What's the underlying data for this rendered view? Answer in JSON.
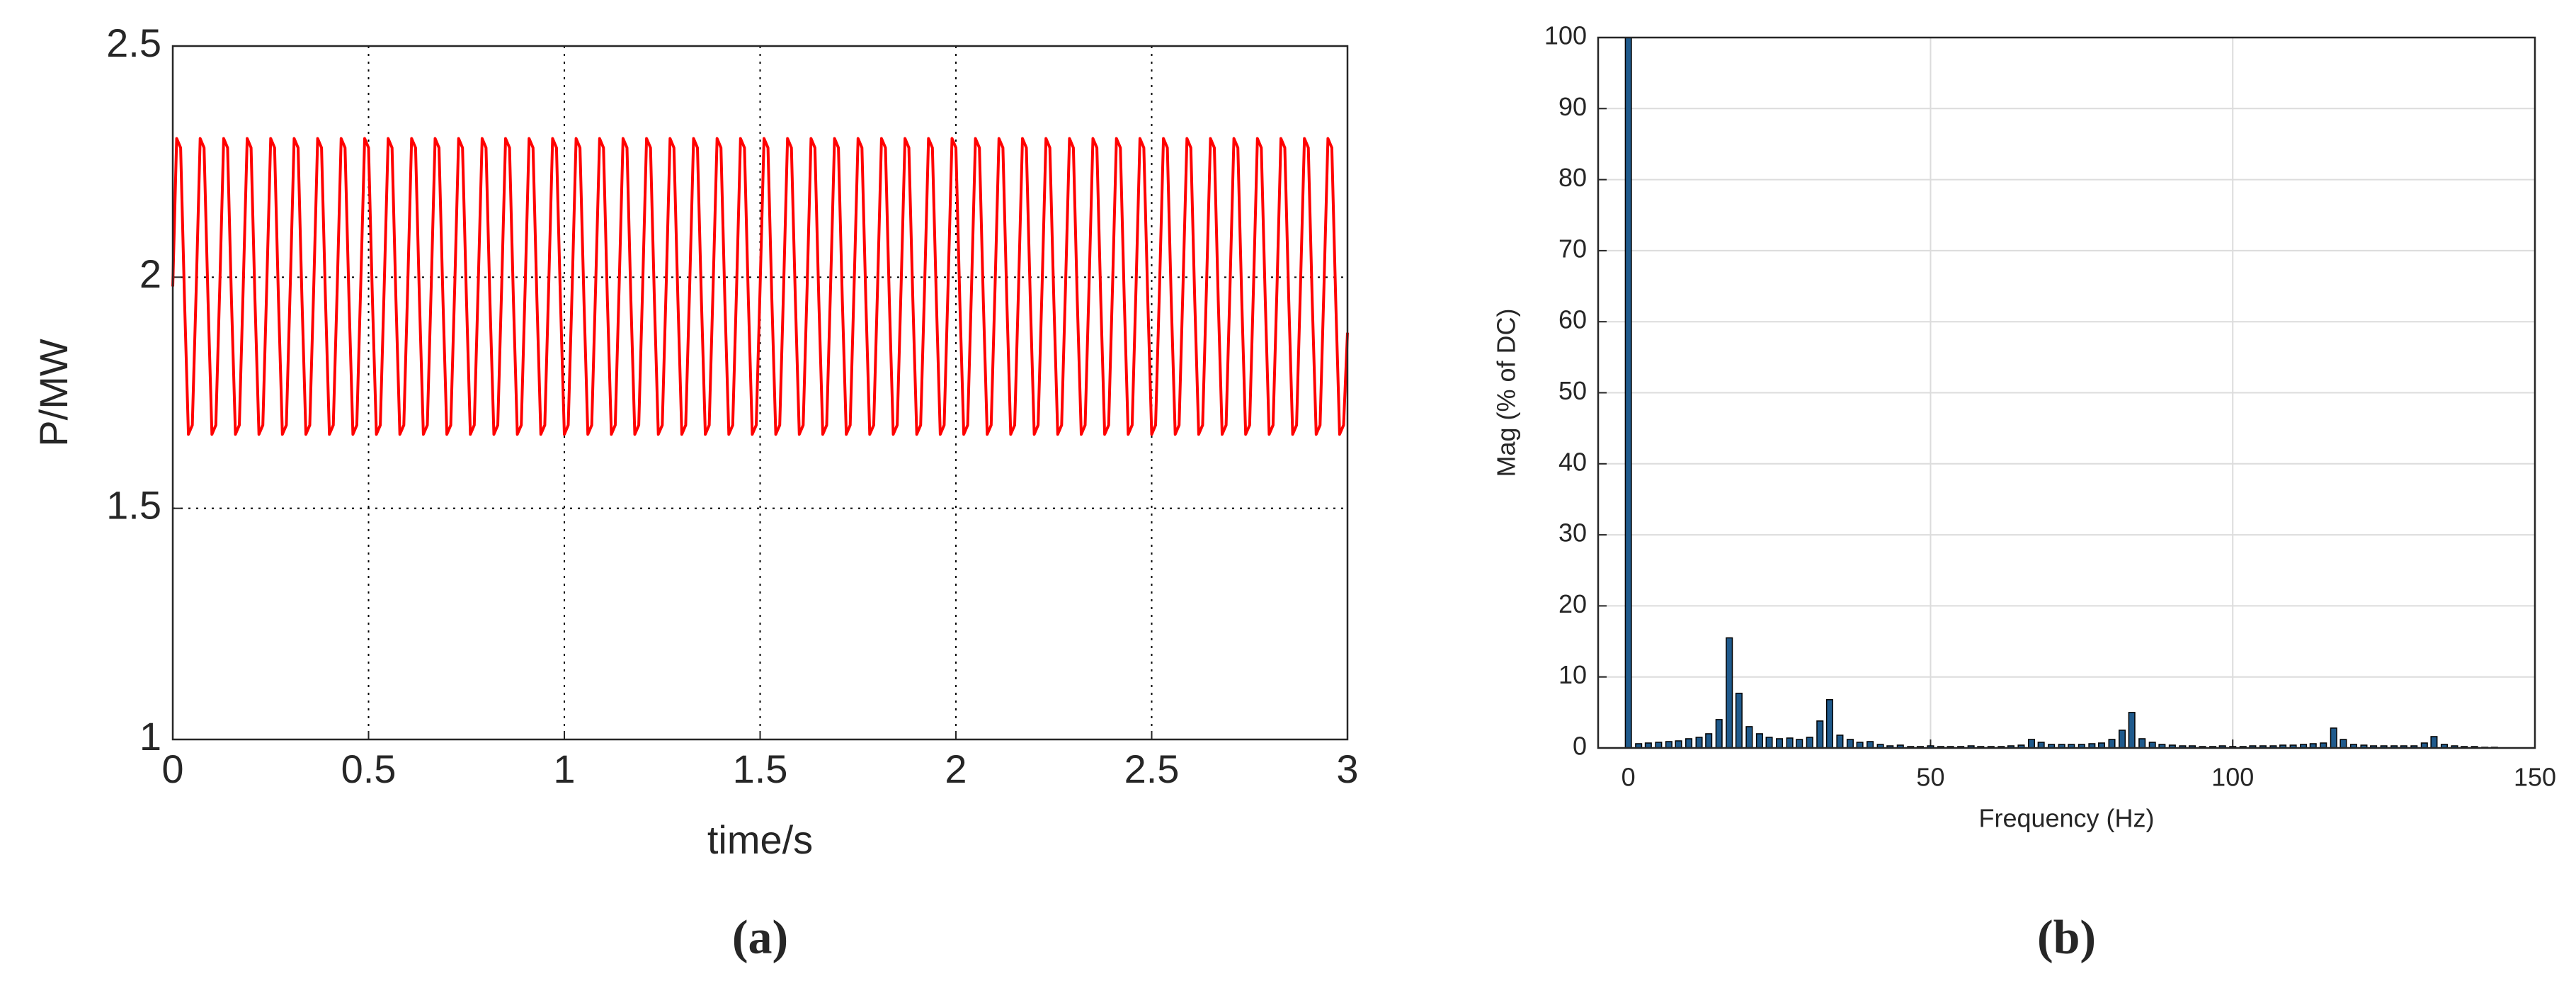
{
  "chart_data": [
    {
      "type": "line",
      "label": "(a)",
      "xlabel": "time/s",
      "ylabel": "P/MW",
      "color": "#ff0000",
      "xlim": [
        0,
        3
      ],
      "ylim": [
        1,
        2.5
      ],
      "xticks": [
        0,
        0.5,
        1,
        1.5,
        2,
        2.5,
        3
      ],
      "yticks": [
        1,
        1.5,
        2,
        2.5
      ],
      "grid": true,
      "x": [
        0,
        0.01,
        0.02,
        0.03,
        0.04,
        0.05,
        0.06,
        0.07,
        0.08,
        0.09,
        0.1,
        0.11,
        0.12,
        0.13,
        0.14,
        0.15,
        0.16,
        0.17,
        0.18,
        0.19,
        0.2,
        0.21,
        0.22,
        0.23,
        0.24,
        0.25,
        0.26,
        0.27,
        0.28,
        0.29,
        0.3,
        0.31,
        0.32,
        0.33,
        0.34,
        0.35,
        0.36,
        0.37,
        0.38,
        0.39,
        0.4,
        0.41,
        0.42,
        0.43,
        0.44,
        0.45,
        0.46,
        0.47,
        0.48,
        0.49,
        0.5,
        0.51,
        0.52,
        0.53,
        0.54,
        0.55,
        0.56,
        0.57,
        0.58,
        0.59,
        0.6,
        0.61,
        0.62,
        0.63,
        0.64,
        0.65,
        0.66,
        0.67,
        0.68,
        0.69,
        0.7,
        0.71,
        0.72,
        0.73,
        0.74,
        0.75,
        0.76,
        0.77,
        0.78,
        0.79,
        0.8,
        0.81,
        0.82,
        0.83,
        0.84,
        0.85,
        0.86,
        0.87,
        0.88,
        0.89,
        0.9,
        0.91,
        0.92,
        0.93,
        0.94,
        0.95,
        0.96,
        0.97,
        0.98,
        0.99,
        1,
        1.01,
        1.02,
        1.03,
        1.04,
        1.05,
        1.06,
        1.07,
        1.08,
        1.09,
        1.1,
        1.11,
        1.12,
        1.13,
        1.14,
        1.15,
        1.16,
        1.17,
        1.18,
        1.19,
        1.2,
        1.21,
        1.22,
        1.23,
        1.24,
        1.25,
        1.26,
        1.27,
        1.28,
        1.29,
        1.3,
        1.31,
        1.32,
        1.33,
        1.34,
        1.35,
        1.36,
        1.37,
        1.38,
        1.39,
        1.4,
        1.41,
        1.42,
        1.43,
        1.44,
        1.45,
        1.46,
        1.47,
        1.48,
        1.49,
        1.5,
        1.51,
        1.52,
        1.53,
        1.54,
        1.55,
        1.56,
        1.57,
        1.58,
        1.59,
        1.6,
        1.61,
        1.62,
        1.63,
        1.64,
        1.65,
        1.66,
        1.67,
        1.68,
        1.69,
        1.7,
        1.71,
        1.72,
        1.73,
        1.74,
        1.75,
        1.76,
        1.77,
        1.78,
        1.79,
        1.8,
        1.81,
        1.82,
        1.83,
        1.84,
        1.85,
        1.86,
        1.87,
        1.88,
        1.89,
        1.9,
        1.91,
        1.92,
        1.93,
        1.94,
        1.95,
        1.96,
        1.97,
        1.98,
        1.99,
        2,
        2.01,
        2.02,
        2.03,
        2.04,
        2.05,
        2.06,
        2.07,
        2.08,
        2.09,
        2.1,
        2.11,
        2.12,
        2.13,
        2.14,
        2.15,
        2.16,
        2.17,
        2.18,
        2.19,
        2.2,
        2.21,
        2.22,
        2.23,
        2.24,
        2.25,
        2.26,
        2.27,
        2.28,
        2.29,
        2.3,
        2.31,
        2.32,
        2.33,
        2.34,
        2.35,
        2.36,
        2.37,
        2.38,
        2.39,
        2.4,
        2.41,
        2.42,
        2.43,
        2.44,
        2.45,
        2.46,
        2.47,
        2.48,
        2.49,
        2.5,
        2.51,
        2.52,
        2.53,
        2.54,
        2.55,
        2.56,
        2.57,
        2.58,
        2.59,
        2.6,
        2.61,
        2.62,
        2.63,
        2.64,
        2.65,
        2.66,
        2.67,
        2.68,
        2.69,
        2.7,
        2.71,
        2.72,
        2.73,
        2.74,
        2.75,
        2.76,
        2.77,
        2.78,
        2.79,
        2.8,
        2.81,
        2.82,
        2.83,
        2.84,
        2.85,
        2.86,
        2.87,
        2.88,
        2.89,
        2.9,
        2.91,
        2.92,
        2.93,
        2.94,
        2.95,
        2.96,
        2.97,
        2.98,
        2.99,
        3
      ],
      "values": [
        1.98,
        2.3,
        2.28,
        1.95,
        1.66,
        1.68,
        1.98,
        2.3,
        2.28,
        1.95,
        1.66,
        1.68,
        1.98,
        2.3,
        2.28,
        1.95,
        1.66,
        1.68,
        1.98,
        2.3,
        2.28,
        1.95,
        1.66,
        1.68,
        1.98,
        2.3,
        2.28,
        1.95,
        1.66,
        1.68,
        1.98,
        2.3,
        2.28,
        1.95,
        1.66,
        1.68,
        1.98,
        2.3,
        2.28,
        1.95,
        1.66,
        1.68,
        1.98,
        2.3,
        2.28,
        1.95,
        1.66,
        1.68,
        1.98,
        2.3,
        2.28,
        1.95,
        1.66,
        1.68,
        1.98,
        2.3,
        2.28,
        1.95,
        1.66,
        1.68,
        1.98,
        2.3,
        2.28,
        1.95,
        1.66,
        1.68,
        1.98,
        2.3,
        2.28,
        1.95,
        1.66,
        1.68,
        1.98,
        2.3,
        2.28,
        1.95,
        1.66,
        1.68,
        1.98,
        2.3,
        2.28,
        1.95,
        1.66,
        1.68,
        1.98,
        2.3,
        2.28,
        1.95,
        1.66,
        1.68,
        1.98,
        2.3,
        2.28,
        1.95,
        1.66,
        1.68,
        1.98,
        2.3,
        2.28,
        1.95,
        1.66,
        1.68,
        1.98,
        2.3,
        2.28,
        1.95,
        1.66,
        1.68,
        1.98,
        2.3,
        2.28,
        1.95,
        1.66,
        1.68,
        1.98,
        2.3,
        2.28,
        1.95,
        1.66,
        1.68,
        1.98,
        2.3,
        2.28,
        1.95,
        1.66,
        1.68,
        1.98,
        2.3,
        2.28,
        1.95,
        1.66,
        1.68,
        1.98,
        2.3,
        2.28,
        1.95,
        1.66,
        1.68,
        1.98,
        2.3,
        2.28,
        1.95,
        1.66,
        1.68,
        1.98,
        2.3,
        2.28,
        1.95,
        1.66,
        1.68,
        1.98,
        2.3,
        2.28,
        1.95,
        1.66,
        1.68,
        1.98,
        2.3,
        2.28,
        1.95,
        1.66,
        1.68,
        1.98,
        2.3,
        2.28,
        1.95,
        1.66,
        1.68,
        1.98,
        2.3,
        2.28,
        1.95,
        1.66,
        1.68,
        1.98,
        2.3,
        2.28,
        1.95,
        1.66,
        1.68,
        1.98,
        2.3,
        2.28,
        1.95,
        1.66,
        1.68,
        1.98,
        2.3,
        2.28,
        1.95,
        1.66,
        1.68,
        1.98,
        2.3,
        2.28,
        1.95,
        1.66,
        1.68,
        1.98,
        2.3,
        2.28,
        1.95,
        1.66,
        1.68,
        1.98,
        2.3,
        2.28,
        1.95,
        1.66,
        1.68,
        1.98,
        2.3,
        2.28,
        1.95,
        1.66,
        1.68,
        1.98,
        2.3,
        2.28,
        1.95,
        1.66,
        1.68,
        1.98,
        2.3,
        2.28,
        1.95,
        1.66,
        1.68,
        1.98,
        2.3,
        2.28,
        1.95,
        1.66,
        1.68,
        1.98,
        2.3,
        2.28,
        1.95,
        1.66,
        1.68,
        1.98,
        2.3,
        2.28,
        1.95,
        1.66,
        1.68,
        1.98,
        2.3,
        2.28,
        1.95,
        1.66,
        1.68,
        1.98,
        2.3,
        2.28,
        1.95,
        1.66,
        1.68,
        1.98,
        2.3,
        2.28,
        1.95,
        1.66,
        1.68,
        1.98,
        2.3,
        2.28,
        1.95,
        1.66,
        1.68,
        1.98,
        2.3,
        2.28,
        1.95,
        1.66,
        1.68,
        1.98,
        2.3,
        2.28,
        1.95,
        1.66,
        1.68,
        1.98,
        2.3,
        2.28,
        1.95,
        1.66,
        1.68,
        1.98,
        2.3,
        2.28,
        1.95,
        1.66,
        1.68,
        1.98,
        2.3,
        2.28,
        1.95,
        1.66,
        1.68,
        1.88
      ]
    },
    {
      "type": "bar",
      "label": "(b)",
      "xlabel": "Frequency (Hz)",
      "ylabel": "Mag (% of DC)",
      "color": "#1f5a8c",
      "xlim": [
        -5,
        150
      ],
      "ylim": [
        0,
        100
      ],
      "xticks": [
        0,
        50,
        100,
        150
      ],
      "yticks": [
        0,
        10,
        20,
        30,
        40,
        50,
        60,
        70,
        80,
        90,
        100
      ],
      "grid": true,
      "x": [
        0,
        1.7,
        3.3,
        5,
        6.7,
        8.3,
        10,
        11.7,
        13.3,
        15,
        16.7,
        18.3,
        20,
        21.7,
        23.3,
        25,
        26.7,
        28.3,
        30,
        31.7,
        33.3,
        35,
        36.7,
        38.3,
        40,
        41.7,
        43.3,
        45,
        46.7,
        48.3,
        50,
        51.7,
        53.3,
        55,
        56.7,
        58.3,
        60,
        61.7,
        63.3,
        65,
        66.7,
        68.3,
        70,
        71.7,
        73.3,
        75,
        76.7,
        78.3,
        80,
        81.7,
        83.3,
        85,
        86.7,
        88.3,
        90,
        91.7,
        93.3,
        95,
        96.7,
        98.3,
        100,
        101.7,
        103.3,
        105,
        106.7,
        108.3,
        110,
        111.7,
        113.3,
        115,
        116.7,
        118.3,
        120,
        121.7,
        123.3,
        125,
        126.7,
        128.3,
        130,
        131.7,
        133.3,
        135,
        136.7,
        138.3,
        140,
        141.7,
        143.3
      ],
      "values": [
        100,
        0.6,
        0.7,
        0.8,
        0.9,
        1.0,
        1.3,
        1.5,
        2.0,
        4.0,
        15.5,
        7.7,
        3.0,
        2.0,
        1.5,
        1.3,
        1.4,
        1.2,
        1.5,
        3.8,
        6.8,
        1.8,
        1.2,
        0.8,
        0.9,
        0.5,
        0.3,
        0.4,
        0.2,
        0.2,
        0.3,
        0.2,
        0.2,
        0.2,
        0.3,
        0.2,
        0.2,
        0.2,
        0.3,
        0.4,
        1.2,
        0.8,
        0.5,
        0.5,
        0.5,
        0.5,
        0.6,
        0.7,
        1.2,
        2.5,
        5.0,
        1.3,
        0.8,
        0.5,
        0.4,
        0.3,
        0.3,
        0.2,
        0.2,
        0.3,
        0.2,
        0.2,
        0.3,
        0.3,
        0.3,
        0.4,
        0.4,
        0.5,
        0.6,
        0.7,
        2.8,
        1.2,
        0.5,
        0.4,
        0.3,
        0.3,
        0.3,
        0.3,
        0.3,
        0.7,
        1.6,
        0.5,
        0.3,
        0.2,
        0.2,
        0.1,
        0.1
      ]
    }
  ]
}
